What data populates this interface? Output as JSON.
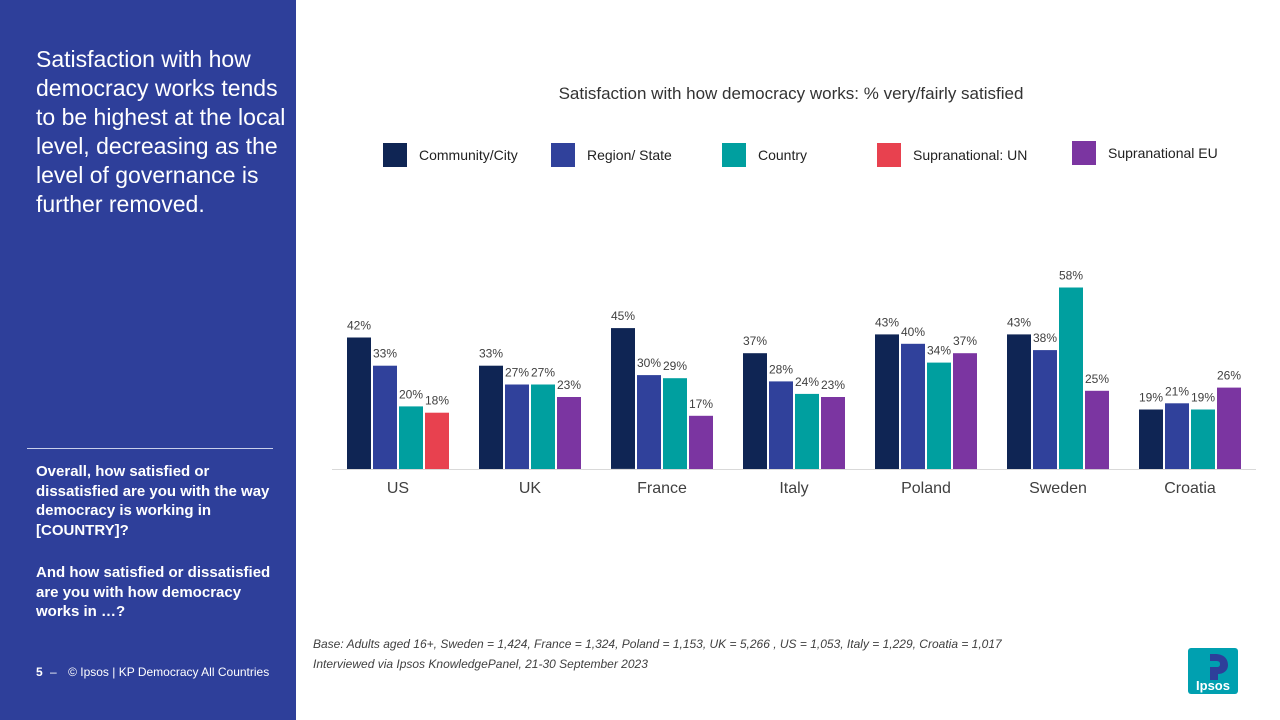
{
  "sidebar": {
    "headline": "Satisfaction with how democracy works tends to be highest at the local level, decreasing as the level of governance is further removed.",
    "question_1": "Overall, how satisfied or dissatisfied are you with the way democracy is working in [COUNTRY]?",
    "question_2": "And how satisfied or dissatisfied are you with how democracy works in …?",
    "page_number": "5",
    "page_dash": "–",
    "footer_text": "© Ipsos | KP Democracy All Countries"
  },
  "notes": {
    "base": "Base: Adults aged 16+, Sweden = 1,424, France = 1,324, Poland = 1,153, UK = 5,266 , US = 1,053, Italy = 1,229, Croatia = 1,017",
    "interviewed": "Interviewed via Ipsos KnowledgePanel, 21-30 September 2023"
  },
  "logo": {
    "text": "Ipsos",
    "color": "#00a0b0"
  },
  "chart_data": {
    "type": "bar",
    "title": "Satisfaction with how democracy works: % very/fairly satisfied",
    "categories": [
      "US",
      "UK",
      "France",
      "Italy",
      "Poland",
      "Sweden",
      "Croatia"
    ],
    "value_suffix": "%",
    "ylim": [
      0,
      70
    ],
    "grid": false,
    "legend_position": "top",
    "series": [
      {
        "name": "Community/City",
        "color": "#0f2554",
        "values": [
          42,
          33,
          45,
          37,
          43,
          43,
          19
        ]
      },
      {
        "name": "Region/ State",
        "color": "#30419b",
        "values": [
          33,
          27,
          30,
          28,
          40,
          38,
          21
        ]
      },
      {
        "name": "Country",
        "color": "#009f9f",
        "values": [
          20,
          27,
          29,
          24,
          34,
          58,
          19
        ]
      },
      {
        "name": "Supranational: UN",
        "color": "#e8414f",
        "values": [
          18,
          null,
          null,
          null,
          null,
          null,
          null
        ]
      },
      {
        "name": "Supranational EU",
        "color": "#7b35a1",
        "values": [
          null,
          23,
          17,
          23,
          37,
          25,
          26
        ]
      }
    ]
  }
}
